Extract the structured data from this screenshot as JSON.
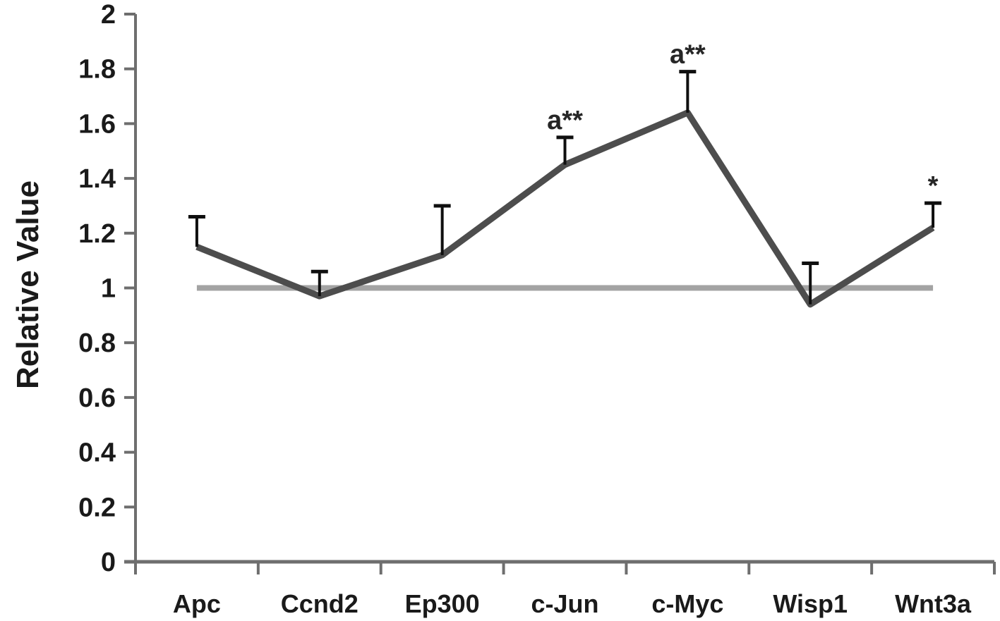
{
  "chart_data": {
    "type": "line",
    "title": "",
    "ylabel": "Relative Value",
    "xlabel": "",
    "categories": [
      "Apc",
      "Ccnd2",
      "Ep300",
      "c-Jun",
      "c-Myc",
      "Wisp1",
      "Wnt3a"
    ],
    "series": [
      {
        "name": "relative-value",
        "values": [
          1.15,
          0.97,
          1.12,
          1.45,
          1.64,
          0.94,
          1.22
        ],
        "error_up": [
          0.11,
          0.09,
          0.18,
          0.1,
          0.15,
          0.15,
          0.09
        ],
        "color": "#4d4d4d"
      },
      {
        "name": "reference-line",
        "values": [
          1,
          1,
          1,
          1,
          1,
          1,
          1
        ],
        "color": "#a3a3a3"
      }
    ],
    "annotations": [
      {
        "category": "c-Jun",
        "text": "a**"
      },
      {
        "category": "c-Myc",
        "text": "a**"
      },
      {
        "category": "Wnt3a",
        "text": "*"
      }
    ],
    "ylim": [
      0,
      2
    ],
    "yticks": [
      0,
      0.2,
      0.4,
      0.6,
      0.8,
      1,
      1.2,
      1.4,
      1.6,
      1.8,
      2
    ],
    "ytick_labels": [
      "0",
      "0.2",
      "0.4",
      "0.6",
      "0.8",
      "1",
      "1.2",
      "1.4",
      "1.6",
      "1.8",
      "2"
    ],
    "grid": false,
    "legend": false,
    "error_color": "#0f0f0f",
    "axis_color": "#6e6e6e",
    "text_color": "#1a1a1a",
    "annotation_color": "#262626"
  }
}
